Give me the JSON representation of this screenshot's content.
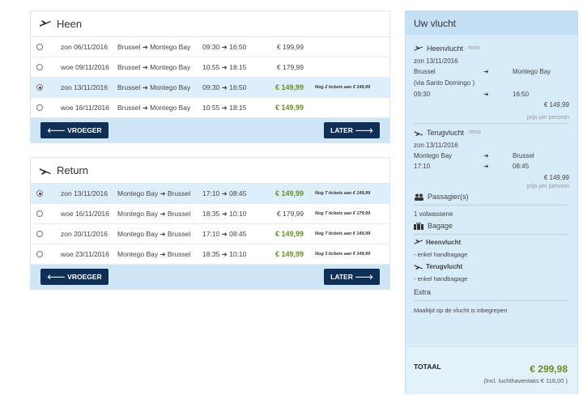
{
  "outbound": {
    "title": "Heen",
    "rows": [
      {
        "date": "zon 06/11/2016",
        "route": "Brussel ➜ Montego Bay",
        "time": "09:30 ➜ 16:50",
        "price": "€ 199,99",
        "note": "",
        "green": false,
        "selected": false
      },
      {
        "date": "woe 09/11/2016",
        "route": "Brussel ➜ Montego Bay",
        "time": "10:55 ➜ 18:15",
        "price": "€ 179,99",
        "note": "",
        "green": false,
        "selected": false
      },
      {
        "date": "zon 13/11/2016",
        "route": "Brussel ➜ Montego Bay",
        "time": "09:30 ➜ 16:50",
        "price": "€ 149,99",
        "note": "Nog 2 tickets aan € 149,99",
        "green": true,
        "selected": true
      },
      {
        "date": "woe 16/11/2016",
        "route": "Brussel ➜ Montego Bay",
        "time": "10:55 ➜ 18:15",
        "price": "€ 149,99",
        "note": "",
        "green": true,
        "selected": false
      }
    ],
    "earlier": "🡐 VROEGER",
    "later": "LATER 🡒"
  },
  "return": {
    "title": "Return",
    "rows": [
      {
        "date": "zon 13/11/2016",
        "route": "Montego Bay ➜ Brussel",
        "time": "17:10 ➜ 08:45",
        "price": "€ 149,99",
        "note": "Nog 7 tickets aan € 149,99",
        "green": true,
        "selected": true
      },
      {
        "date": "woe 16/11/2016",
        "route": "Montego Bay ➜ Brussel",
        "time": "18:35 ➜ 10:10",
        "price": "€ 179,99",
        "note": "Nog 7 tickets aan € 179,99",
        "green": false,
        "selected": false
      },
      {
        "date": "zon 20/11/2016",
        "route": "Montego Bay ➜ Brussel",
        "time": "17:10 ➜ 08:45",
        "price": "€ 149,99",
        "note": "Nog 7 tickets aan € 149,99",
        "green": true,
        "selected": false
      },
      {
        "date": "woe 23/11/2016",
        "route": "Montego Bay ➜ Brussel",
        "time": "18:35 ➜ 10:10",
        "price": "€ 149,99",
        "note": "Nog 3 tickets aan € 149,99",
        "green": true,
        "selected": false
      }
    ],
    "earlier": "🡐 VROEGER",
    "later": "LATER 🡒"
  },
  "summary": {
    "title": "Uw vlucht",
    "outbound": {
      "label": "Heenvlucht",
      "code": "- TB701",
      "date": "zon 13/11/2016",
      "from": "Brussel",
      "to": "Montego Bay",
      "via": "(via Santo Domingo )",
      "dep": "09:30",
      "arr": "16:50",
      "arrow": "➜",
      "price": "€ 149,99",
      "per_person": "prijs per persoon"
    },
    "return": {
      "label": "Terugvlucht",
      "code": "- TB702",
      "date": "zon 13/11/2016",
      "from": "Montego Bay",
      "to": "Brussel",
      "dep": "17:10",
      "arr": "08:45",
      "arrow": "➜",
      "price": "€ 149,99",
      "per_person": "prijs per persoon"
    },
    "passengers_label": "Passagier(s)",
    "passengers_value": "1 volwassene",
    "baggage_label": "Bagage",
    "baggage_out_label": "Heenvlucht",
    "baggage_out_value": "- enkel handbagage",
    "baggage_ret_label": "Terugvlucht",
    "baggage_ret_value": "- enkel handbagage",
    "extra_label": "Extra",
    "extra_value": "Maaltijd op de vlucht is inbegrepen",
    "total_label": "TOTAAL",
    "total_value": "€ 299,98",
    "total_note": "(Incl. luchthaventaks € 116,00 )"
  },
  "colors": {
    "navy_button": "#0f2f56",
    "selected_row": "#deeffb",
    "price_green": "#6b8e23",
    "sidebar_bg": "#d7ebf9"
  }
}
